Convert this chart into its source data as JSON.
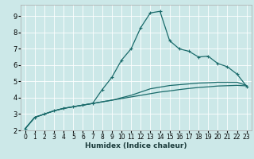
{
  "xlabel": "Humidex (Indice chaleur)",
  "background_color": "#cce8e8",
  "grid_color": "#ffffff",
  "line_color": "#1a6b6b",
  "xlim": [
    -0.5,
    23.5
  ],
  "ylim": [
    2.0,
    9.7
  ],
  "xticks": [
    0,
    1,
    2,
    3,
    4,
    5,
    6,
    7,
    8,
    9,
    10,
    11,
    12,
    13,
    14,
    15,
    16,
    17,
    18,
    19,
    20,
    21,
    22,
    23
  ],
  "yticks": [
    2,
    3,
    4,
    5,
    6,
    7,
    8,
    9
  ],
  "curve1_x": [
    0,
    1,
    2,
    3,
    4,
    5,
    6,
    7,
    8,
    9,
    10,
    11,
    12,
    13,
    14,
    15,
    16,
    17,
    18,
    19,
    20,
    21,
    22,
    23
  ],
  "curve1_y": [
    2.1,
    2.8,
    3.0,
    3.2,
    3.35,
    3.45,
    3.55,
    3.65,
    4.5,
    5.25,
    6.3,
    7.0,
    8.3,
    9.2,
    9.3,
    7.5,
    7.0,
    6.85,
    6.5,
    6.55,
    6.1,
    5.9,
    5.45,
    4.7
  ],
  "curve2_x": [
    0,
    1,
    2,
    3,
    4,
    5,
    6,
    7,
    8,
    9,
    10,
    11,
    12,
    13,
    14,
    15,
    16,
    17,
    18,
    19,
    20,
    21,
    22,
    23
  ],
  "curve2_y": [
    2.1,
    2.8,
    3.0,
    3.2,
    3.35,
    3.45,
    3.55,
    3.65,
    3.75,
    3.85,
    4.0,
    4.15,
    4.35,
    4.55,
    4.65,
    4.75,
    4.8,
    4.85,
    4.9,
    4.92,
    4.95,
    4.95,
    4.95,
    4.75
  ],
  "curve3_x": [
    0,
    1,
    2,
    3,
    4,
    5,
    6,
    7,
    8,
    9,
    10,
    11,
    12,
    13,
    14,
    15,
    16,
    17,
    18,
    19,
    20,
    21,
    22,
    23
  ],
  "curve3_y": [
    2.1,
    2.8,
    3.0,
    3.2,
    3.35,
    3.45,
    3.55,
    3.65,
    3.75,
    3.85,
    3.95,
    4.05,
    4.15,
    4.25,
    4.35,
    4.42,
    4.5,
    4.57,
    4.63,
    4.67,
    4.72,
    4.74,
    4.76,
    4.73
  ]
}
